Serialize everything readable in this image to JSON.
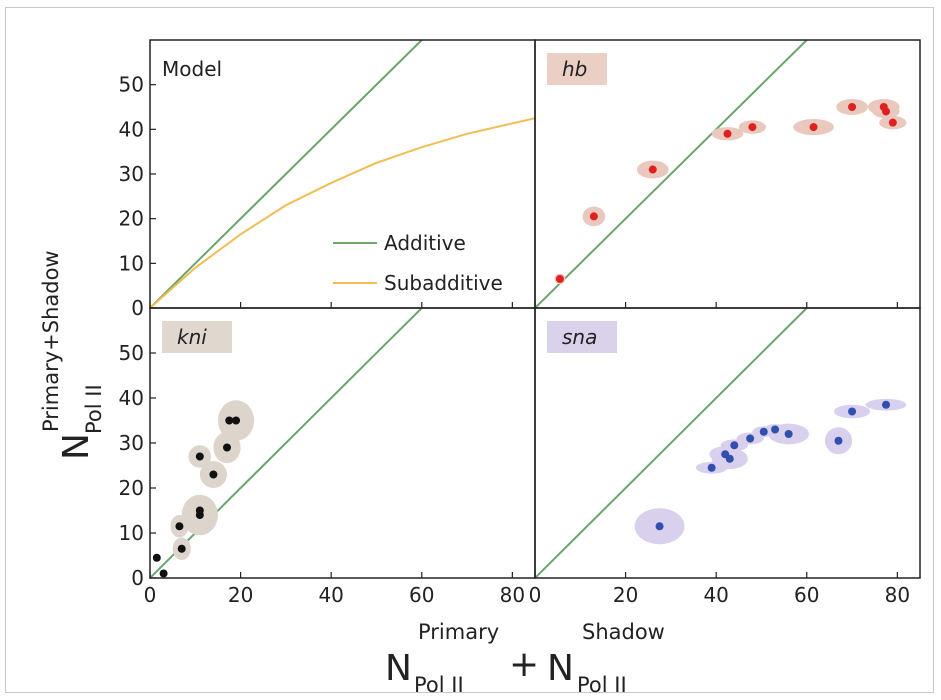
{
  "chart_data": [
    {
      "panel": "model",
      "type": "line",
      "label": "Model",
      "xlim": [
        0,
        85
      ],
      "ylim": [
        0,
        60
      ],
      "xticks": [
        0,
        20,
        40,
        60,
        80
      ],
      "yticks": [
        0,
        10,
        20,
        30,
        40,
        50
      ],
      "series": [
        {
          "name": "Additive",
          "color": "#6aa56a",
          "x": [
            0,
            60
          ],
          "y": [
            0,
            60
          ]
        },
        {
          "name": "Subadditive",
          "color": "#f0be52",
          "x": [
            0,
            10,
            20,
            30,
            40,
            50,
            60,
            70,
            85
          ],
          "y": [
            0,
            9,
            16.5,
            23,
            28,
            32.5,
            36,
            39,
            42.5
          ]
        }
      ],
      "legend_position": "lower-right"
    },
    {
      "panel": "hb",
      "type": "scatter",
      "label": "hb",
      "label_bg": "#ebcfc5",
      "color": "#e02020",
      "ellipse_color": "#e9c8bd",
      "xlim": [
        0,
        85
      ],
      "ylim": [
        0,
        60
      ],
      "xticks": [
        0,
        20,
        40,
        60,
        80
      ],
      "points": [
        {
          "x": 5.5,
          "y": 6.5,
          "ex": 1.2,
          "ey": 1.2
        },
        {
          "x": 13,
          "y": 20.5,
          "ex": 2.5,
          "ey": 2.2
        },
        {
          "x": 26,
          "y": 31,
          "ex": 3.5,
          "ey": 2.0
        },
        {
          "x": 42.5,
          "y": 39,
          "ex": 3.5,
          "ey": 1.5
        },
        {
          "x": 48,
          "y": 40.5,
          "ex": 3.0,
          "ey": 1.5
        },
        {
          "x": 61.5,
          "y": 40.5,
          "ex": 4.5,
          "ey": 1.8
        },
        {
          "x": 70,
          "y": 45,
          "ex": 3.5,
          "ey": 1.8
        },
        {
          "x": 77,
          "y": 45,
          "ex": 3.5,
          "ey": 1.8
        },
        {
          "x": 77.5,
          "y": 44,
          "ex": 3.0,
          "ey": 1.5
        },
        {
          "x": 79,
          "y": 41.5,
          "ex": 3.0,
          "ey": 1.5
        }
      ]
    },
    {
      "panel": "kni",
      "type": "scatter",
      "label": "kni",
      "label_bg": "#e0d8cf",
      "color": "#111111",
      "ellipse_color": "#ddd5cc",
      "xlim": [
        0,
        85
      ],
      "ylim": [
        0,
        60
      ],
      "xticks": [
        0,
        20,
        40,
        60,
        80
      ],
      "yticks": [
        0,
        10,
        20,
        30,
        40,
        50
      ],
      "points": [
        {
          "x": 1.5,
          "y": 4.5,
          "ex": 0,
          "ey": 0
        },
        {
          "x": 3,
          "y": 1,
          "ex": 0,
          "ey": 0
        },
        {
          "x": 7,
          "y": 6.5,
          "ex": 2.0,
          "ey": 2.5
        },
        {
          "x": 6.5,
          "y": 11.5,
          "ex": 2.0,
          "ey": 2.5
        },
        {
          "x": 11,
          "y": 14,
          "ex": 4.0,
          "ey": 4.5
        },
        {
          "x": 11,
          "y": 15,
          "ex": 0,
          "ey": 0
        },
        {
          "x": 11,
          "y": 27,
          "ex": 2.5,
          "ey": 2.5
        },
        {
          "x": 14,
          "y": 23,
          "ex": 3.0,
          "ey": 3.0
        },
        {
          "x": 17,
          "y": 29,
          "ex": 3.0,
          "ey": 3.5
        },
        {
          "x": 17.5,
          "y": 35,
          "ex": 0,
          "ey": 0
        },
        {
          "x": 19,
          "y": 35,
          "ex": 4.0,
          "ey": 4.5
        }
      ]
    },
    {
      "panel": "sna",
      "type": "scatter",
      "label": "sna",
      "label_bg": "#d9d2ea",
      "color": "#3050b0",
      "ellipse_color": "#d8d0ec",
      "xlim": [
        0,
        85
      ],
      "ylim": [
        0,
        60
      ],
      "xticks": [
        0,
        20,
        40,
        60,
        80
      ],
      "points": [
        {
          "x": 27.5,
          "y": 11.5,
          "ex": 5.5,
          "ey": 4.0
        },
        {
          "x": 39,
          "y": 24.5,
          "ex": 3.5,
          "ey": 1.3
        },
        {
          "x": 42,
          "y": 27.5,
          "ex": 3.5,
          "ey": 1.8
        },
        {
          "x": 43,
          "y": 26.5,
          "ex": 4.0,
          "ey": 2.3
        },
        {
          "x": 44,
          "y": 29.5,
          "ex": 3.0,
          "ey": 1.3
        },
        {
          "x": 47.5,
          "y": 31,
          "ex": 3.0,
          "ey": 1.3
        },
        {
          "x": 50.5,
          "y": 32.5,
          "ex": 2.5,
          "ey": 1.2
        },
        {
          "x": 53,
          "y": 33,
          "ex": 2.5,
          "ey": 1.2
        },
        {
          "x": 56,
          "y": 32,
          "ex": 4.5,
          "ey": 2.3
        },
        {
          "x": 67,
          "y": 30.5,
          "ex": 3.0,
          "ey": 3.0
        },
        {
          "x": 70,
          "y": 37,
          "ex": 4.0,
          "ey": 1.5
        },
        {
          "x": 77.5,
          "y": 38.5,
          "ex": 4.5,
          "ey": 1.3
        }
      ]
    }
  ],
  "axes": {
    "ylabel": {
      "main": "N",
      "sub": "Pol II",
      "sup": "Primary+Shadow"
    },
    "xlabel": {
      "main1": "N",
      "sub1": "Pol II",
      "sup1": "Primary",
      "plus": "+",
      "main2": "N",
      "sub2": "Pol II",
      "sup2": "Shadow"
    }
  }
}
